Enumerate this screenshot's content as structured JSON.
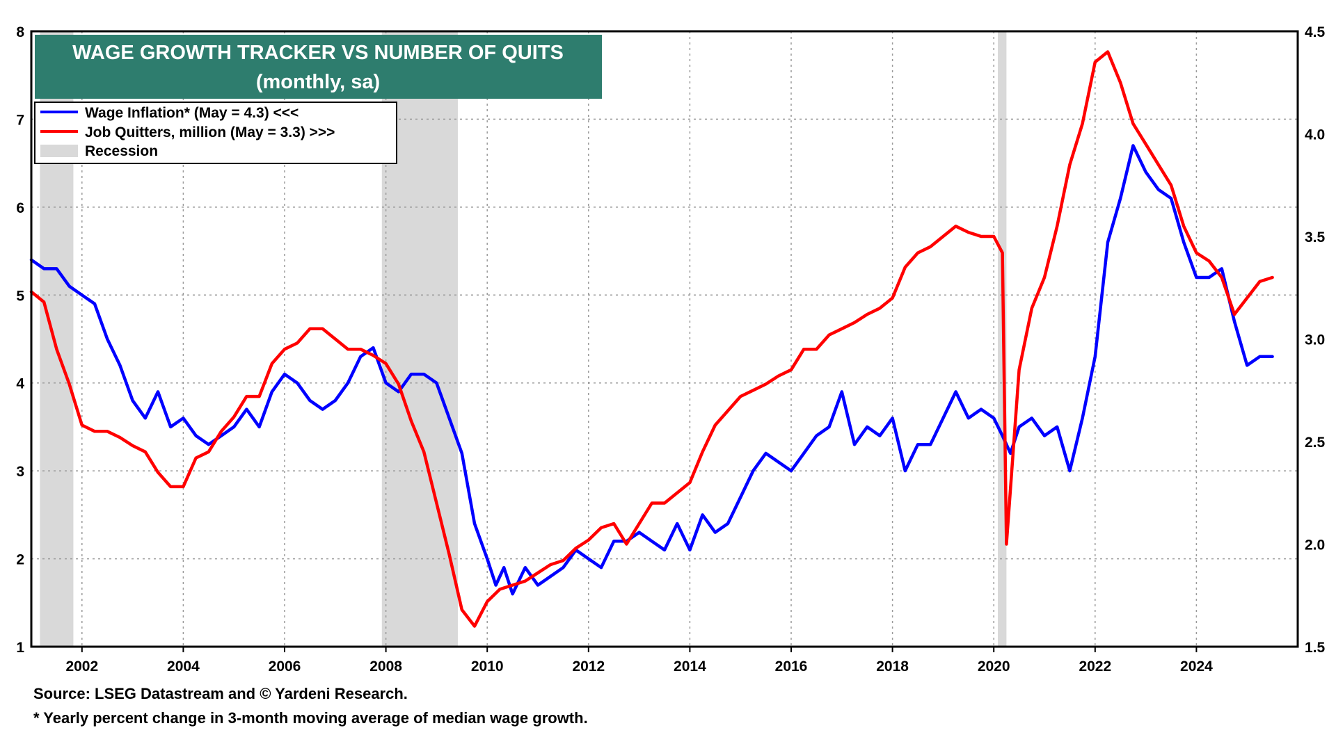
{
  "chart_data": {
    "type": "line",
    "title": "WAGE GROWTH TRACKER VS NUMBER OF QUITS",
    "subtitle": "(monthly, sa)",
    "x_axis": {
      "range": [
        2001.0,
        2026.0
      ],
      "tick_labels": [
        "2002",
        "2004",
        "2006",
        "2008",
        "2010",
        "2012",
        "2014",
        "2016",
        "2018",
        "2020",
        "2022",
        "2024"
      ],
      "tick_values": [
        2002,
        2004,
        2006,
        2008,
        2010,
        2012,
        2014,
        2016,
        2018,
        2020,
        2022,
        2024
      ]
    },
    "y_left": {
      "range": [
        1,
        8
      ],
      "tick_labels": [
        "1",
        "2",
        "3",
        "4",
        "5",
        "6",
        "7",
        "8"
      ],
      "tick_values": [
        1,
        2,
        3,
        4,
        5,
        6,
        7,
        8
      ]
    },
    "y_right": {
      "range": [
        1.5,
        4.5
      ],
      "tick_labels": [
        "1.5",
        "2.0",
        "2.5",
        "3.0",
        "3.5",
        "4.0",
        "4.5"
      ],
      "tick_values": [
        1.5,
        2.0,
        2.5,
        3.0,
        3.5,
        4.0,
        4.5
      ]
    },
    "grid": true,
    "legend_placement": "top-left",
    "recessions": [
      [
        2001.17,
        2001.83
      ],
      [
        2007.92,
        2009.42
      ],
      [
        2020.08,
        2020.25
      ]
    ],
    "legend": {
      "wage": "Wage Inflation*  (May = 4.3) <<<",
      "quits": "Job Quitters, million (May = 3.3) >>>",
      "recession": "Recession"
    },
    "series": [
      {
        "name": "Wage Inflation*  (May = 4.3) <<<",
        "axis": "left",
        "color": "#0000ff",
        "points": [
          [
            2001.0,
            5.4
          ],
          [
            2001.25,
            5.3
          ],
          [
            2001.5,
            5.3
          ],
          [
            2001.75,
            5.1
          ],
          [
            2002.0,
            5.0
          ],
          [
            2002.25,
            4.9
          ],
          [
            2002.5,
            4.5
          ],
          [
            2002.75,
            4.2
          ],
          [
            2003.0,
            3.8
          ],
          [
            2003.25,
            3.6
          ],
          [
            2003.5,
            3.9
          ],
          [
            2003.75,
            3.5
          ],
          [
            2004.0,
            3.6
          ],
          [
            2004.25,
            3.4
          ],
          [
            2004.5,
            3.3
          ],
          [
            2004.75,
            3.4
          ],
          [
            2005.0,
            3.5
          ],
          [
            2005.25,
            3.7
          ],
          [
            2005.5,
            3.5
          ],
          [
            2005.75,
            3.9
          ],
          [
            2006.0,
            4.1
          ],
          [
            2006.25,
            4.0
          ],
          [
            2006.5,
            3.8
          ],
          [
            2006.75,
            3.7
          ],
          [
            2007.0,
            3.8
          ],
          [
            2007.25,
            4.0
          ],
          [
            2007.5,
            4.3
          ],
          [
            2007.75,
            4.4
          ],
          [
            2008.0,
            4.0
          ],
          [
            2008.25,
            3.9
          ],
          [
            2008.5,
            4.1
          ],
          [
            2008.75,
            4.1
          ],
          [
            2009.0,
            4.0
          ],
          [
            2009.25,
            3.6
          ],
          [
            2009.5,
            3.2
          ],
          [
            2009.75,
            2.4
          ],
          [
            2010.0,
            2.0
          ],
          [
            2010.17,
            1.7
          ],
          [
            2010.33,
            1.9
          ],
          [
            2010.5,
            1.6
          ],
          [
            2010.75,
            1.9
          ],
          [
            2011.0,
            1.7
          ],
          [
            2011.25,
            1.8
          ],
          [
            2011.5,
            1.9
          ],
          [
            2011.75,
            2.1
          ],
          [
            2012.0,
            2.0
          ],
          [
            2012.25,
            1.9
          ],
          [
            2012.5,
            2.2
          ],
          [
            2012.75,
            2.2
          ],
          [
            2013.0,
            2.3
          ],
          [
            2013.25,
            2.2
          ],
          [
            2013.5,
            2.1
          ],
          [
            2013.75,
            2.4
          ],
          [
            2014.0,
            2.1
          ],
          [
            2014.25,
            2.5
          ],
          [
            2014.5,
            2.3
          ],
          [
            2014.75,
            2.4
          ],
          [
            2015.0,
            2.7
          ],
          [
            2015.25,
            3.0
          ],
          [
            2015.5,
            3.2
          ],
          [
            2015.75,
            3.1
          ],
          [
            2016.0,
            3.0
          ],
          [
            2016.25,
            3.2
          ],
          [
            2016.5,
            3.4
          ],
          [
            2016.75,
            3.5
          ],
          [
            2017.0,
            3.9
          ],
          [
            2017.25,
            3.3
          ],
          [
            2017.5,
            3.5
          ],
          [
            2017.75,
            3.4
          ],
          [
            2018.0,
            3.6
          ],
          [
            2018.25,
            3.0
          ],
          [
            2018.5,
            3.3
          ],
          [
            2018.75,
            3.3
          ],
          [
            2019.0,
            3.6
          ],
          [
            2019.25,
            3.9
          ],
          [
            2019.5,
            3.6
          ],
          [
            2019.75,
            3.7
          ],
          [
            2020.0,
            3.6
          ],
          [
            2020.17,
            3.4
          ],
          [
            2020.33,
            3.2
          ],
          [
            2020.5,
            3.5
          ],
          [
            2020.75,
            3.6
          ],
          [
            2021.0,
            3.4
          ],
          [
            2021.25,
            3.5
          ],
          [
            2021.5,
            3.0
          ],
          [
            2021.75,
            3.6
          ],
          [
            2022.0,
            4.3
          ],
          [
            2022.25,
            5.6
          ],
          [
            2022.5,
            6.1
          ],
          [
            2022.75,
            6.7
          ],
          [
            2023.0,
            6.4
          ],
          [
            2023.25,
            6.2
          ],
          [
            2023.5,
            6.1
          ],
          [
            2023.75,
            5.6
          ],
          [
            2024.0,
            5.2
          ],
          [
            2024.25,
            5.2
          ],
          [
            2024.5,
            5.3
          ],
          [
            2024.75,
            4.7
          ],
          [
            2025.0,
            4.2
          ],
          [
            2025.25,
            4.3
          ],
          [
            2025.5,
            4.3
          ]
        ]
      },
      {
        "name": "Job Quitters, million (May = 3.3) >>>",
        "axis": "right",
        "color": "#ff0000",
        "points": [
          [
            2001.0,
            3.23
          ],
          [
            2001.25,
            3.18
          ],
          [
            2001.5,
            2.95
          ],
          [
            2001.75,
            2.78
          ],
          [
            2002.0,
            2.58
          ],
          [
            2002.25,
            2.55
          ],
          [
            2002.5,
            2.55
          ],
          [
            2002.75,
            2.52
          ],
          [
            2003.0,
            2.48
          ],
          [
            2003.25,
            2.45
          ],
          [
            2003.5,
            2.35
          ],
          [
            2003.75,
            2.28
          ],
          [
            2004.0,
            2.28
          ],
          [
            2004.25,
            2.42
          ],
          [
            2004.5,
            2.45
          ],
          [
            2004.75,
            2.55
          ],
          [
            2005.0,
            2.62
          ],
          [
            2005.25,
            2.72
          ],
          [
            2005.5,
            2.72
          ],
          [
            2005.75,
            2.88
          ],
          [
            2006.0,
            2.95
          ],
          [
            2006.25,
            2.98
          ],
          [
            2006.5,
            3.05
          ],
          [
            2006.75,
            3.05
          ],
          [
            2007.0,
            3.0
          ],
          [
            2007.25,
            2.95
          ],
          [
            2007.5,
            2.95
          ],
          [
            2007.75,
            2.92
          ],
          [
            2008.0,
            2.88
          ],
          [
            2008.25,
            2.78
          ],
          [
            2008.5,
            2.6
          ],
          [
            2008.75,
            2.45
          ],
          [
            2009.0,
            2.2
          ],
          [
            2009.25,
            1.95
          ],
          [
            2009.5,
            1.68
          ],
          [
            2009.75,
            1.6
          ],
          [
            2010.0,
            1.72
          ],
          [
            2010.25,
            1.78
          ],
          [
            2010.5,
            1.8
          ],
          [
            2010.75,
            1.82
          ],
          [
            2011.0,
            1.86
          ],
          [
            2011.25,
            1.9
          ],
          [
            2011.5,
            1.92
          ],
          [
            2011.75,
            1.98
          ],
          [
            2012.0,
            2.02
          ],
          [
            2012.25,
            2.08
          ],
          [
            2012.5,
            2.1
          ],
          [
            2012.75,
            2.0
          ],
          [
            2013.0,
            2.1
          ],
          [
            2013.25,
            2.2
          ],
          [
            2013.5,
            2.2
          ],
          [
            2013.75,
            2.25
          ],
          [
            2014.0,
            2.3
          ],
          [
            2014.25,
            2.45
          ],
          [
            2014.5,
            2.58
          ],
          [
            2014.75,
            2.65
          ],
          [
            2015.0,
            2.72
          ],
          [
            2015.25,
            2.75
          ],
          [
            2015.5,
            2.78
          ],
          [
            2015.75,
            2.82
          ],
          [
            2016.0,
            2.85
          ],
          [
            2016.25,
            2.95
          ],
          [
            2016.5,
            2.95
          ],
          [
            2016.75,
            3.02
          ],
          [
            2017.0,
            3.05
          ],
          [
            2017.25,
            3.08
          ],
          [
            2017.5,
            3.12
          ],
          [
            2017.75,
            3.15
          ],
          [
            2018.0,
            3.2
          ],
          [
            2018.25,
            3.35
          ],
          [
            2018.5,
            3.42
          ],
          [
            2018.75,
            3.45
          ],
          [
            2019.0,
            3.5
          ],
          [
            2019.25,
            3.55
          ],
          [
            2019.5,
            3.52
          ],
          [
            2019.75,
            3.5
          ],
          [
            2020.0,
            3.5
          ],
          [
            2020.17,
            3.42
          ],
          [
            2020.25,
            2.0
          ],
          [
            2020.5,
            2.85
          ],
          [
            2020.75,
            3.15
          ],
          [
            2021.0,
            3.3
          ],
          [
            2021.25,
            3.55
          ],
          [
            2021.5,
            3.85
          ],
          [
            2021.75,
            4.05
          ],
          [
            2022.0,
            4.35
          ],
          [
            2022.25,
            4.4
          ],
          [
            2022.5,
            4.25
          ],
          [
            2022.75,
            4.05
          ],
          [
            2023.0,
            3.95
          ],
          [
            2023.25,
            3.85
          ],
          [
            2023.5,
            3.75
          ],
          [
            2023.75,
            3.55
          ],
          [
            2024.0,
            3.42
          ],
          [
            2024.25,
            3.38
          ],
          [
            2024.5,
            3.3
          ],
          [
            2024.75,
            3.12
          ],
          [
            2025.0,
            3.2
          ],
          [
            2025.25,
            3.28
          ],
          [
            2025.5,
            3.3
          ]
        ]
      }
    ]
  },
  "footer": {
    "source": "Source: LSEG Datastream and © Yardeni Research.",
    "note": "* Yearly percent change in 3-month moving average of median wage growth."
  },
  "colors": {
    "title_bg": "#2e7d6e",
    "recession": "#d9d9d9",
    "grid": "#9a9a9a",
    "wage": "#0000ff",
    "quits": "#ff0000"
  }
}
